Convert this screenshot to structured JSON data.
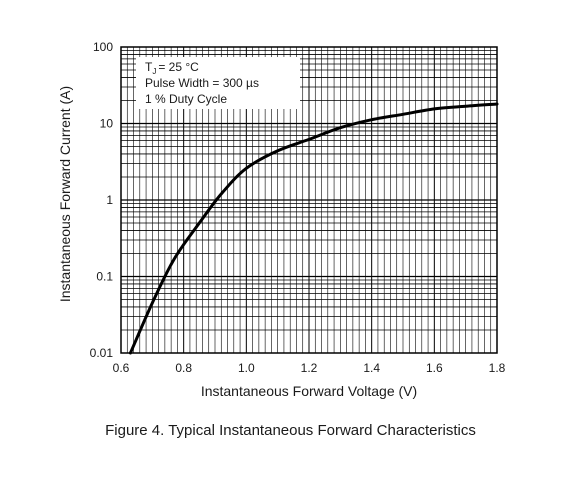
{
  "caption": "Figure 4. Typical Instantaneous Forward Characteristics",
  "chart_data": {
    "type": "line",
    "title": "",
    "xlabel": "Instantaneous Forward Voltage (V)",
    "ylabel": "Instantaneous Forward Current (A)",
    "xlim": [
      0.6,
      1.8
    ],
    "ylim": [
      0.01,
      100
    ],
    "y_scale": "log",
    "grid": true,
    "x_ticks": [
      0.6,
      0.8,
      1.0,
      1.2,
      1.4,
      1.6,
      1.8
    ],
    "x_tick_labels": [
      "0.6",
      "0.8",
      "1.0",
      "1.2",
      "1.4",
      "1.6",
      "1.8"
    ],
    "y_ticks": [
      0.01,
      0.1,
      1,
      10,
      100
    ],
    "y_tick_labels": [
      "0.01",
      "0.1",
      "1",
      "10",
      "100"
    ],
    "annotations": [
      "= 25 °C",
      "Pulse Width = 300 µs",
      "1 % Duty Cycle"
    ],
    "annotation_symbol": {
      "main": "T",
      "sub": "J"
    },
    "series": [
      {
        "x": [
          0.63,
          0.7,
          0.77,
          0.85,
          0.92,
          1.0,
          1.1,
          1.2,
          1.3,
          1.4,
          1.5,
          1.6,
          1.7,
          1.8
        ],
        "y": [
          0.01,
          0.045,
          0.17,
          0.5,
          1.2,
          2.6,
          4.4,
          6.2,
          8.8,
          11.2,
          13.2,
          15.5,
          16.8,
          18.0
        ]
      }
    ]
  }
}
